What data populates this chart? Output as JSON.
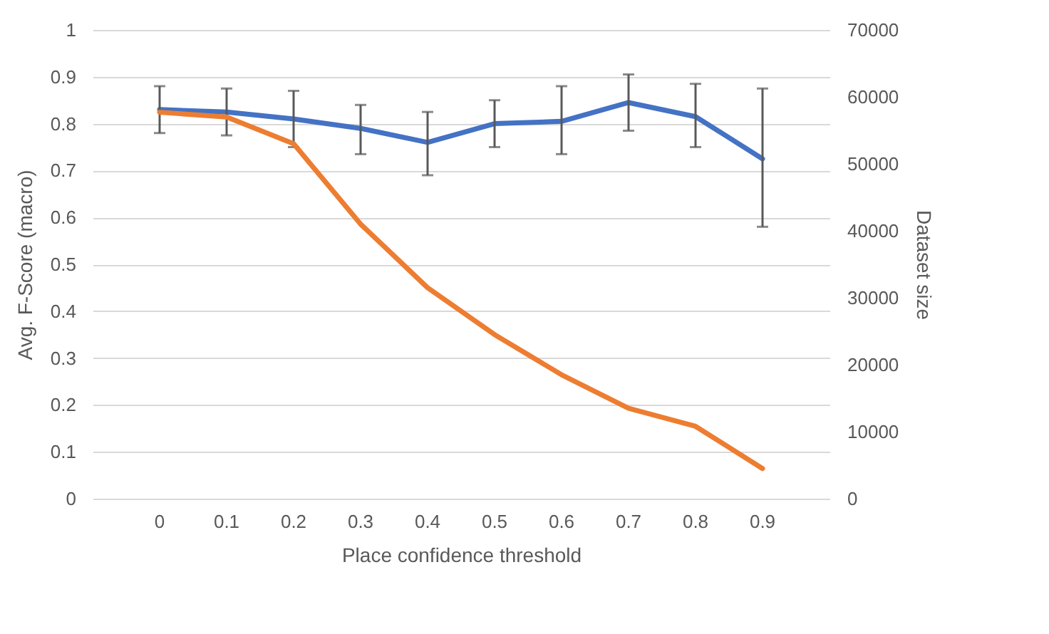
{
  "chart_data": {
    "type": "line",
    "xlabel": "Place confidence threshold",
    "ylabel": "Avg. F-Score (macro)",
    "y2label": "Dataset size",
    "categories": [
      "0",
      "0.1",
      "0.2",
      "0.3",
      "0.4",
      "0.5",
      "0.6",
      "0.7",
      "0.8",
      "0.9"
    ],
    "series": [
      {
        "color": "#4472c4",
        "values": [
          0.83,
          0.825,
          0.81,
          0.79,
          0.76,
          0.8,
          0.805,
          0.845,
          0.815,
          0.725
        ],
        "errors": [
          [
            0.78,
            0.88
          ],
          [
            0.775,
            0.875
          ],
          [
            0.75,
            0.87
          ],
          [
            0.735,
            0.84
          ],
          [
            0.69,
            0.825
          ],
          [
            0.75,
            0.85
          ],
          [
            0.735,
            0.88
          ],
          [
            0.785,
            0.905
          ],
          [
            0.75,
            0.885
          ],
          [
            0.58,
            0.875
          ]
        ]
      },
      {
        "color": "#ed7d31",
        "axis": "y2",
        "values": [
          57700,
          57000,
          53000,
          41000,
          31500,
          24500,
          18500,
          13500,
          10800,
          4500
        ]
      }
    ],
    "ylim": [
      0,
      1
    ],
    "yticks": [
      0,
      0.1,
      0.2,
      0.3,
      0.4,
      0.5,
      0.6,
      0.7,
      0.8,
      0.9,
      1
    ],
    "y2lim": [
      0,
      70000
    ],
    "y2ticks": [
      0,
      10000,
      20000,
      30000,
      40000,
      50000,
      60000,
      70000
    ],
    "grid": "y",
    "line_style": "solid",
    "marker": "none"
  }
}
